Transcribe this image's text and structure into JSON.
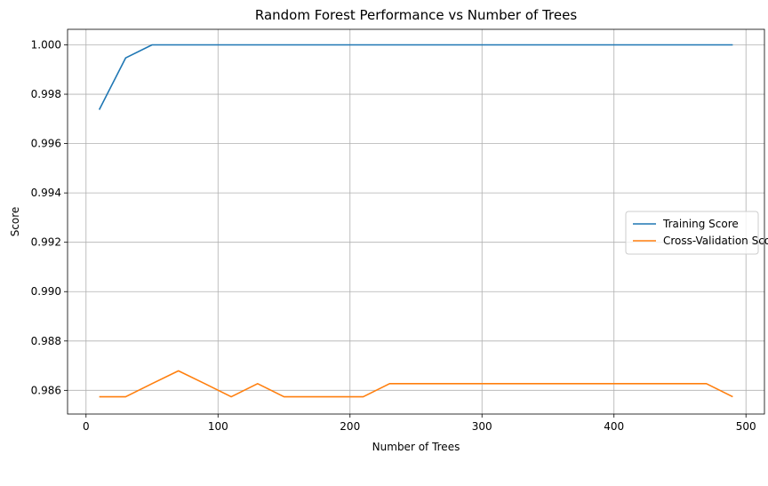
{
  "chart_data": {
    "type": "line",
    "title": "Random Forest Performance vs Number of Trees",
    "xlabel": "Number of Trees",
    "ylabel": "Score",
    "xlim": [
      -14,
      514
    ],
    "ylim": [
      0.98504,
      1.00063
    ],
    "xticks": [
      0,
      100,
      200,
      300,
      400,
      500
    ],
    "xtick_labels": [
      "0",
      "100",
      "200",
      "300",
      "400",
      "500"
    ],
    "yticks": [
      0.986,
      0.988,
      0.99,
      0.992,
      0.994,
      0.996,
      0.998,
      1.0
    ],
    "ytick_labels": [
      "0.986",
      "0.988",
      "0.990",
      "0.992",
      "0.994",
      "0.996",
      "0.998",
      "1.000"
    ],
    "grid": true,
    "legend_position": "center-right",
    "x": [
      10,
      30,
      50,
      70,
      90,
      110,
      130,
      150,
      170,
      190,
      210,
      230,
      250,
      270,
      290,
      310,
      330,
      350,
      370,
      390,
      410,
      430,
      450,
      470,
      490
    ],
    "series": [
      {
        "name": "Training Score",
        "color": "#1f77b4",
        "values": [
          0.99737,
          0.99947,
          1.0,
          1.0,
          1.0,
          1.0,
          1.0,
          1.0,
          1.0,
          1.0,
          1.0,
          1.0,
          1.0,
          1.0,
          1.0,
          1.0,
          1.0,
          1.0,
          1.0,
          1.0,
          1.0,
          1.0,
          1.0,
          1.0,
          1.0
        ]
      },
      {
        "name": "Cross-Validation Score",
        "color": "#ff7f0e",
        "values": [
          0.98574,
          0.98574,
          0.98627,
          0.98679,
          0.98627,
          0.98574,
          0.98627,
          0.98574,
          0.98574,
          0.98574,
          0.98574,
          0.98627,
          0.98627,
          0.98627,
          0.98627,
          0.98627,
          0.98627,
          0.98627,
          0.98627,
          0.98627,
          0.98627,
          0.98627,
          0.98627,
          0.98627,
          0.98574
        ]
      }
    ]
  }
}
